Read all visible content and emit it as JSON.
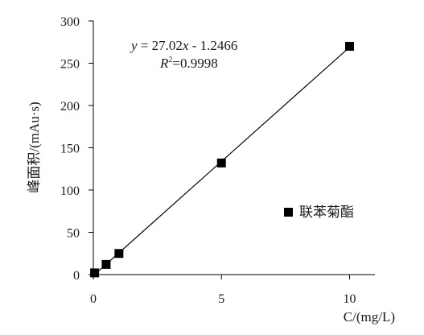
{
  "chart_data": {
    "type": "scatter",
    "title": "",
    "xlabel": "C/(mg/L)",
    "ylabel": "峰面积/(mAu·s)",
    "xlim": [
      0,
      10
    ],
    "ylim": [
      0,
      300
    ],
    "x_ticks": [
      0,
      5,
      10
    ],
    "y_ticks": [
      0,
      50,
      100,
      150,
      200,
      250,
      300
    ],
    "grid": false,
    "legend_position": "center-right",
    "series": [
      {
        "name": "联苯菊酯",
        "marker": "square",
        "color": "#000000",
        "points": [
          {
            "x": 0.05,
            "y": 2
          },
          {
            "x": 0.5,
            "y": 12
          },
          {
            "x": 1,
            "y": 25
          },
          {
            "x": 5,
            "y": 132
          },
          {
            "x": 10,
            "y": 270
          }
        ]
      }
    ],
    "trendline": {
      "slope": 27.02,
      "intercept": -1.2466,
      "equation_label": {
        "y": "y",
        "eq": " = 27.02",
        "x": "x",
        "rest": " - 1.2466"
      },
      "r2_label": {
        "r": "R",
        "sup": "2",
        "val": "=0.9998"
      }
    }
  }
}
